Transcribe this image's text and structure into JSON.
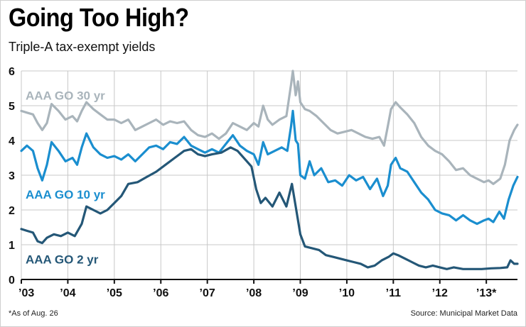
{
  "chart_data": {
    "type": "line",
    "title": "Going Too High?",
    "subtitle": "Triple-A tax-exempt yields",
    "footnote": "*As of Aug. 26",
    "source": "Source: Municipal Market Data",
    "xlabel": "",
    "ylabel": "",
    "xlim": [
      2003.0,
      2013.67
    ],
    "ylim": [
      0,
      6
    ],
    "grid": true,
    "x_ticks": [
      {
        "value": 2003,
        "label": "’03"
      },
      {
        "value": 2004,
        "label": "’04"
      },
      {
        "value": 2005,
        "label": "’05"
      },
      {
        "value": 2006,
        "label": "’06"
      },
      {
        "value": 2007,
        "label": "’07"
      },
      {
        "value": 2008,
        "label": "’08"
      },
      {
        "value": 2009,
        "label": "’09"
      },
      {
        "value": 2010,
        "label": "’10"
      },
      {
        "value": 2011,
        "label": "’11"
      },
      {
        "value": 2012,
        "label": "’12"
      },
      {
        "value": 2013,
        "label": "’13*"
      }
    ],
    "y_ticks": [
      0,
      1,
      2,
      3,
      4,
      5,
      6
    ],
    "series": [
      {
        "name": "AAA GO 30 yr",
        "color": "#a9b4bb",
        "label_y": 5.3,
        "points": [
          [
            2003.0,
            4.85
          ],
          [
            2003.12,
            4.8
          ],
          [
            2003.25,
            4.75
          ],
          [
            2003.35,
            4.5
          ],
          [
            2003.45,
            4.3
          ],
          [
            2003.55,
            4.5
          ],
          [
            2003.65,
            5.05
          ],
          [
            2003.8,
            4.85
          ],
          [
            2003.95,
            4.6
          ],
          [
            2004.1,
            4.7
          ],
          [
            2004.2,
            4.55
          ],
          [
            2004.3,
            4.85
          ],
          [
            2004.4,
            5.1
          ],
          [
            2004.55,
            4.9
          ],
          [
            2004.7,
            4.75
          ],
          [
            2004.85,
            4.6
          ],
          [
            2005.0,
            4.6
          ],
          [
            2005.15,
            4.5
          ],
          [
            2005.3,
            4.6
          ],
          [
            2005.45,
            4.3
          ],
          [
            2005.6,
            4.4
          ],
          [
            2005.75,
            4.5
          ],
          [
            2005.9,
            4.6
          ],
          [
            2006.05,
            4.45
          ],
          [
            2006.2,
            4.55
          ],
          [
            2006.35,
            4.5
          ],
          [
            2006.5,
            4.55
          ],
          [
            2006.65,
            4.3
          ],
          [
            2006.8,
            4.15
          ],
          [
            2006.95,
            4.1
          ],
          [
            2007.1,
            4.2
          ],
          [
            2007.25,
            4.05
          ],
          [
            2007.4,
            4.2
          ],
          [
            2007.55,
            4.5
          ],
          [
            2007.7,
            4.4
          ],
          [
            2007.85,
            4.3
          ],
          [
            2008.0,
            4.5
          ],
          [
            2008.1,
            4.4
          ],
          [
            2008.2,
            5.0
          ],
          [
            2008.3,
            4.6
          ],
          [
            2008.4,
            4.45
          ],
          [
            2008.55,
            4.6
          ],
          [
            2008.7,
            4.7
          ],
          [
            2008.8,
            5.6
          ],
          [
            2008.84,
            6.0
          ],
          [
            2008.9,
            5.3
          ],
          [
            2008.95,
            5.7
          ],
          [
            2009.0,
            5.1
          ],
          [
            2009.1,
            4.9
          ],
          [
            2009.2,
            4.85
          ],
          [
            2009.35,
            4.7
          ],
          [
            2009.5,
            4.5
          ],
          [
            2009.65,
            4.3
          ],
          [
            2009.8,
            4.2
          ],
          [
            2009.95,
            4.25
          ],
          [
            2010.1,
            4.3
          ],
          [
            2010.25,
            4.2
          ],
          [
            2010.4,
            4.1
          ],
          [
            2010.55,
            4.05
          ],
          [
            2010.7,
            4.1
          ],
          [
            2010.8,
            3.85
          ],
          [
            2010.88,
            4.4
          ],
          [
            2010.95,
            4.9
          ],
          [
            2011.05,
            5.1
          ],
          [
            2011.15,
            4.95
          ],
          [
            2011.3,
            4.75
          ],
          [
            2011.45,
            4.5
          ],
          [
            2011.6,
            4.1
          ],
          [
            2011.75,
            3.85
          ],
          [
            2011.9,
            3.7
          ],
          [
            2012.05,
            3.6
          ],
          [
            2012.2,
            3.4
          ],
          [
            2012.35,
            3.15
          ],
          [
            2012.5,
            3.2
          ],
          [
            2012.65,
            3.0
          ],
          [
            2012.8,
            2.9
          ],
          [
            2012.95,
            2.8
          ],
          [
            2013.05,
            2.85
          ],
          [
            2013.15,
            2.75
          ],
          [
            2013.3,
            2.9
          ],
          [
            2013.4,
            3.3
          ],
          [
            2013.5,
            4.0
          ],
          [
            2013.6,
            4.3
          ],
          [
            2013.67,
            4.45
          ]
        ]
      },
      {
        "name": "AAA GO 10 yr",
        "color": "#1a8ecf",
        "label_y": 2.45,
        "points": [
          [
            2003.0,
            3.7
          ],
          [
            2003.12,
            3.85
          ],
          [
            2003.25,
            3.7
          ],
          [
            2003.35,
            3.2
          ],
          [
            2003.45,
            2.85
          ],
          [
            2003.55,
            3.3
          ],
          [
            2003.65,
            3.95
          ],
          [
            2003.8,
            3.7
          ],
          [
            2003.95,
            3.4
          ],
          [
            2004.1,
            3.5
          ],
          [
            2004.2,
            3.3
          ],
          [
            2004.3,
            3.8
          ],
          [
            2004.4,
            4.2
          ],
          [
            2004.55,
            3.8
          ],
          [
            2004.7,
            3.6
          ],
          [
            2004.85,
            3.5
          ],
          [
            2005.0,
            3.55
          ],
          [
            2005.15,
            3.45
          ],
          [
            2005.3,
            3.6
          ],
          [
            2005.45,
            3.4
          ],
          [
            2005.6,
            3.6
          ],
          [
            2005.75,
            3.8
          ],
          [
            2005.9,
            3.85
          ],
          [
            2006.05,
            3.75
          ],
          [
            2006.2,
            3.95
          ],
          [
            2006.35,
            3.9
          ],
          [
            2006.5,
            4.1
          ],
          [
            2006.65,
            3.85
          ],
          [
            2006.8,
            3.75
          ],
          [
            2006.95,
            3.65
          ],
          [
            2007.1,
            3.75
          ],
          [
            2007.25,
            3.65
          ],
          [
            2007.4,
            3.9
          ],
          [
            2007.55,
            4.15
          ],
          [
            2007.7,
            3.85
          ],
          [
            2007.85,
            3.7
          ],
          [
            2008.0,
            3.6
          ],
          [
            2008.1,
            3.3
          ],
          [
            2008.2,
            3.95
          ],
          [
            2008.3,
            3.6
          ],
          [
            2008.45,
            3.7
          ],
          [
            2008.6,
            3.8
          ],
          [
            2008.72,
            3.7
          ],
          [
            2008.8,
            4.4
          ],
          [
            2008.84,
            4.85
          ],
          [
            2008.9,
            4.0
          ],
          [
            2008.95,
            3.9
          ],
          [
            2009.0,
            3.0
          ],
          [
            2009.1,
            2.9
          ],
          [
            2009.2,
            3.4
          ],
          [
            2009.3,
            3.0
          ],
          [
            2009.45,
            3.2
          ],
          [
            2009.6,
            2.8
          ],
          [
            2009.75,
            2.85
          ],
          [
            2009.9,
            2.7
          ],
          [
            2010.05,
            3.0
          ],
          [
            2010.2,
            2.85
          ],
          [
            2010.35,
            2.95
          ],
          [
            2010.5,
            2.6
          ],
          [
            2010.65,
            2.9
          ],
          [
            2010.78,
            2.4
          ],
          [
            2010.88,
            2.7
          ],
          [
            2010.95,
            3.3
          ],
          [
            2011.05,
            3.5
          ],
          [
            2011.15,
            3.2
          ],
          [
            2011.3,
            3.1
          ],
          [
            2011.45,
            2.8
          ],
          [
            2011.6,
            2.5
          ],
          [
            2011.75,
            2.3
          ],
          [
            2011.9,
            2.0
          ],
          [
            2012.05,
            1.9
          ],
          [
            2012.2,
            1.85
          ],
          [
            2012.35,
            1.7
          ],
          [
            2012.5,
            1.85
          ],
          [
            2012.65,
            1.7
          ],
          [
            2012.8,
            1.6
          ],
          [
            2012.95,
            1.7
          ],
          [
            2013.05,
            1.75
          ],
          [
            2013.15,
            1.65
          ],
          [
            2013.28,
            1.95
          ],
          [
            2013.38,
            1.75
          ],
          [
            2013.48,
            2.3
          ],
          [
            2013.58,
            2.7
          ],
          [
            2013.67,
            2.95
          ]
        ]
      },
      {
        "name": "AAA GO 2 yr",
        "color": "#245777",
        "label_y": 0.58,
        "points": [
          [
            2003.0,
            1.45
          ],
          [
            2003.12,
            1.4
          ],
          [
            2003.25,
            1.35
          ],
          [
            2003.35,
            1.1
          ],
          [
            2003.45,
            1.05
          ],
          [
            2003.55,
            1.2
          ],
          [
            2003.7,
            1.3
          ],
          [
            2003.85,
            1.25
          ],
          [
            2004.0,
            1.35
          ],
          [
            2004.15,
            1.25
          ],
          [
            2004.3,
            1.6
          ],
          [
            2004.4,
            2.1
          ],
          [
            2004.55,
            2.0
          ],
          [
            2004.7,
            1.9
          ],
          [
            2004.85,
            2.0
          ],
          [
            2005.0,
            2.2
          ],
          [
            2005.15,
            2.4
          ],
          [
            2005.3,
            2.75
          ],
          [
            2005.5,
            2.8
          ],
          [
            2005.7,
            2.95
          ],
          [
            2005.9,
            3.1
          ],
          [
            2006.1,
            3.3
          ],
          [
            2006.3,
            3.5
          ],
          [
            2006.5,
            3.7
          ],
          [
            2006.65,
            3.75
          ],
          [
            2006.8,
            3.6
          ],
          [
            2006.95,
            3.55
          ],
          [
            2007.1,
            3.6
          ],
          [
            2007.3,
            3.65
          ],
          [
            2007.5,
            3.8
          ],
          [
            2007.65,
            3.7
          ],
          [
            2007.85,
            3.4
          ],
          [
            2007.95,
            3.25
          ],
          [
            2008.05,
            2.6
          ],
          [
            2008.15,
            2.2
          ],
          [
            2008.25,
            2.35
          ],
          [
            2008.4,
            2.1
          ],
          [
            2008.55,
            2.5
          ],
          [
            2008.7,
            2.1
          ],
          [
            2008.82,
            2.75
          ],
          [
            2008.9,
            2.1
          ],
          [
            2009.0,
            1.3
          ],
          [
            2009.1,
            0.95
          ],
          [
            2009.25,
            0.9
          ],
          [
            2009.4,
            0.85
          ],
          [
            2009.55,
            0.7
          ],
          [
            2009.7,
            0.65
          ],
          [
            2009.85,
            0.6
          ],
          [
            2010.0,
            0.55
          ],
          [
            2010.15,
            0.5
          ],
          [
            2010.3,
            0.45
          ],
          [
            2010.45,
            0.35
          ],
          [
            2010.6,
            0.4
          ],
          [
            2010.75,
            0.55
          ],
          [
            2010.9,
            0.65
          ],
          [
            2011.0,
            0.75
          ],
          [
            2011.1,
            0.7
          ],
          [
            2011.25,
            0.6
          ],
          [
            2011.4,
            0.5
          ],
          [
            2011.55,
            0.4
          ],
          [
            2011.7,
            0.35
          ],
          [
            2011.85,
            0.4
          ],
          [
            2012.0,
            0.35
          ],
          [
            2012.15,
            0.3
          ],
          [
            2012.3,
            0.35
          ],
          [
            2012.5,
            0.3
          ],
          [
            2012.7,
            0.3
          ],
          [
            2012.9,
            0.3
          ],
          [
            2013.1,
            0.32
          ],
          [
            2013.3,
            0.33
          ],
          [
            2013.45,
            0.35
          ],
          [
            2013.52,
            0.55
          ],
          [
            2013.6,
            0.45
          ],
          [
            2013.67,
            0.45
          ]
        ]
      }
    ]
  }
}
